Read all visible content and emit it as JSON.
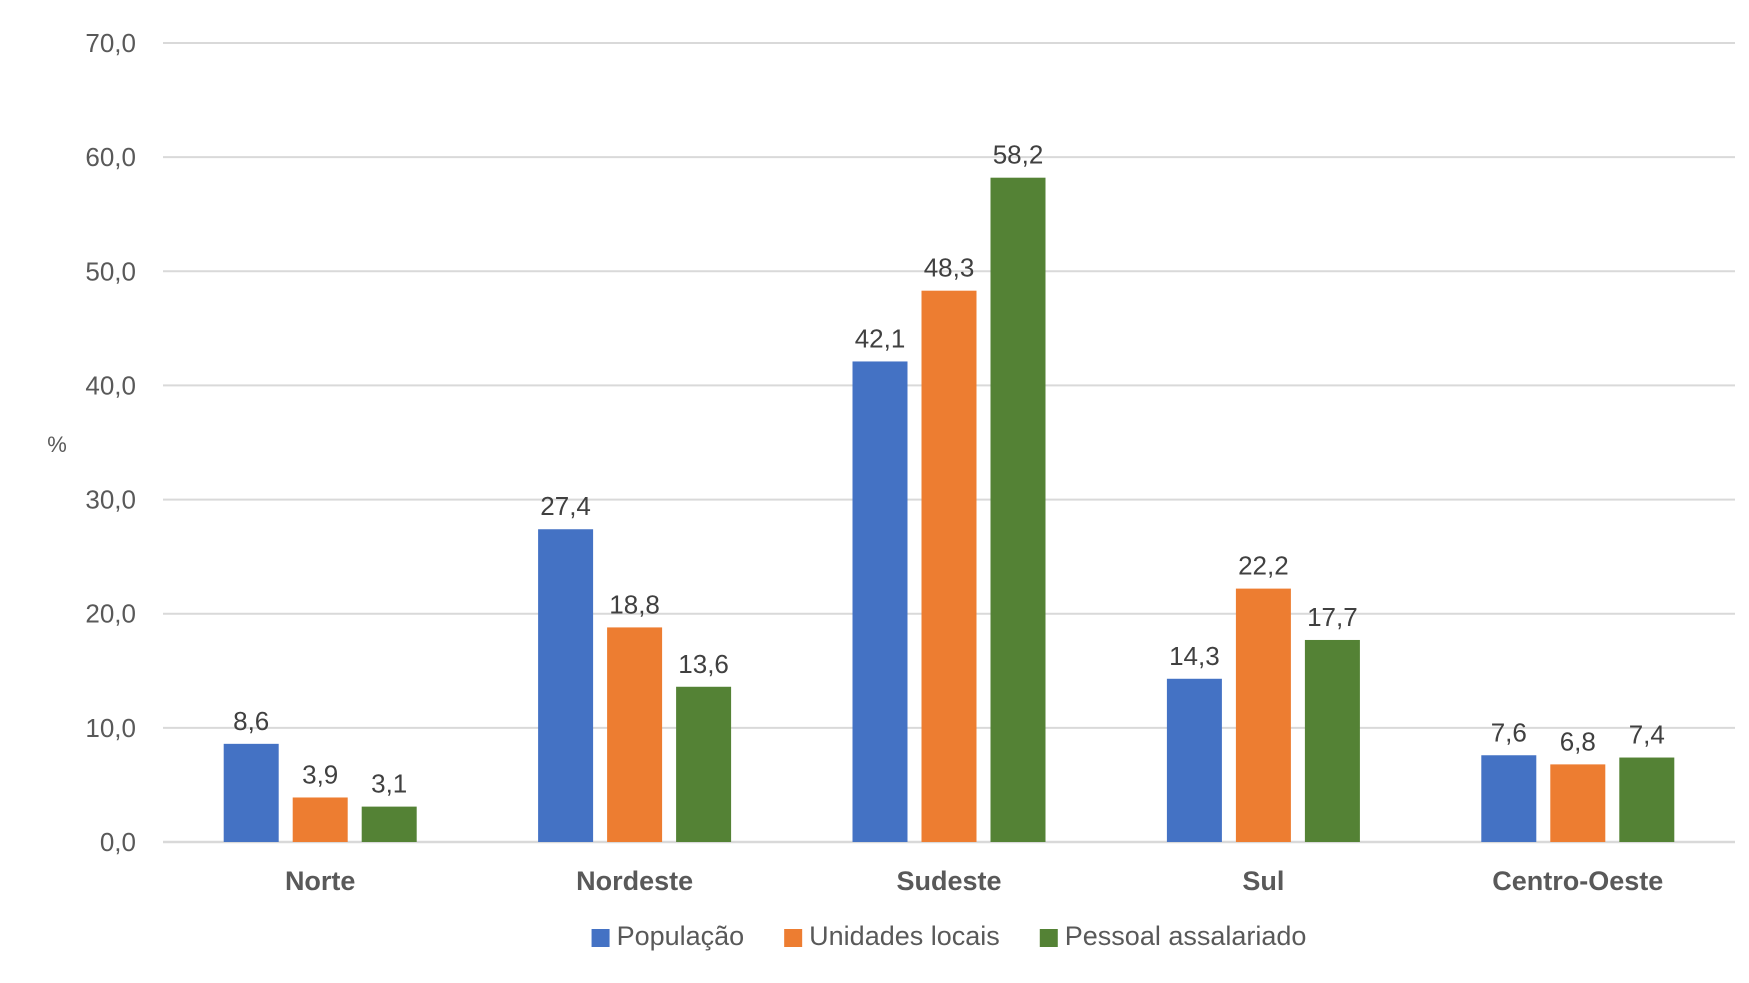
{
  "chart_data": {
    "type": "bar",
    "ylabel": "%",
    "ylim": [
      0,
      70
    ],
    "ytick_step": 10,
    "ytick_labels": [
      "0,0",
      "10,0",
      "20,0",
      "30,0",
      "40,0",
      "50,0",
      "60,0",
      "70,0"
    ],
    "grid": true,
    "legend_position": "bottom",
    "categories": [
      "Norte",
      "Nordeste",
      "Sudeste",
      "Sul",
      "Centro-Oeste"
    ],
    "series": [
      {
        "name": "População",
        "color": "#4472C4",
        "values": [
          8.6,
          27.4,
          42.1,
          14.3,
          7.6
        ],
        "labels": [
          "8,6",
          "27,4",
          "42,1",
          "14,3",
          "7,6"
        ]
      },
      {
        "name": "Unidades locais",
        "color": "#ED7D31",
        "values": [
          3.9,
          18.8,
          48.3,
          22.2,
          6.8
        ],
        "labels": [
          "3,9",
          "18,8",
          "48,3",
          "22,2",
          "6,8"
        ]
      },
      {
        "name": "Pessoal assalariado",
        "color": "#548235",
        "values": [
          3.1,
          13.6,
          58.2,
          17.7,
          7.4
        ],
        "labels": [
          "3,1",
          "13,6",
          "58,2",
          "17,7",
          "7,4"
        ]
      }
    ]
  }
}
